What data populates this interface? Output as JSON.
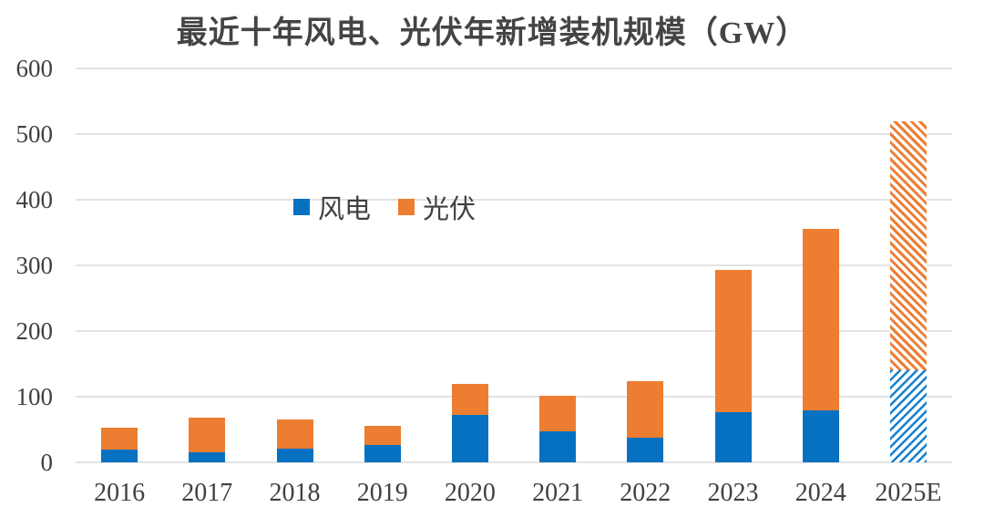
{
  "title": "最近十年风电、光伏年新增装机规模（GW）",
  "legend": [
    {
      "label": "风电",
      "color": "#0771C1"
    },
    {
      "label": "光伏",
      "color": "#ED7D31"
    }
  ],
  "colors": {
    "wind_blue": "#0771C1",
    "solar_orange": "#ED7D31",
    "gridline": "#e2e2e2",
    "text": "#404040"
  },
  "chart_data": {
    "type": "bar",
    "stacked": true,
    "title": "最近十年风电、光伏年新增装机规模（GW）",
    "categories": [
      "2016",
      "2017",
      "2018",
      "2019",
      "2020",
      "2021",
      "2022",
      "2023",
      "2024",
      "2025E"
    ],
    "series": [
      {
        "name": "风电",
        "color": "#0771C1",
        "values": [
          19,
          15,
          21,
          26,
          72,
          47,
          37,
          76,
          79,
          140
        ]
      },
      {
        "name": "光伏",
        "color": "#ED7D31",
        "values": [
          34,
          53,
          44,
          30,
          48,
          55,
          87,
          217,
          277,
          380
        ]
      }
    ],
    "totals": [
      53,
      68,
      65,
      56,
      120,
      102,
      124,
      293,
      356,
      520
    ],
    "forecast_category": "2025E",
    "forecast_style": "diagonal-hatch",
    "xlabel": "",
    "ylabel": "",
    "ylim": [
      0,
      600
    ],
    "yticks": [
      0,
      100,
      200,
      300,
      400,
      500,
      600
    ],
    "grid": true,
    "legend_position": "inside-upper-left"
  }
}
